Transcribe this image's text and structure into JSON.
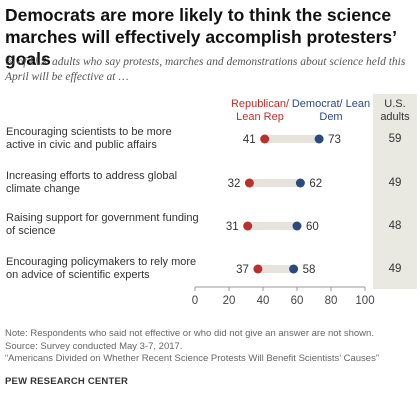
{
  "title": "Democrats are more likely to think the science marches will effectively accomplish protesters’ goals",
  "subtitle": "% of U.S. adults who say protests, marches and demonstrations about science held this April will be effective at …",
  "chart_data": {
    "type": "dot",
    "series": [
      {
        "name": "Republican/ Lean Rep",
        "color": "#b9312b",
        "values": [
          41,
          32,
          31,
          37
        ]
      },
      {
        "name": "Democrat/ Lean Dem",
        "color": "#2a4a7f",
        "values": [
          73,
          62,
          60,
          58
        ]
      }
    ],
    "categories": [
      "Encouraging scientists to be more active in civic and public affairs",
      "Increasing efforts to address global climate change",
      "Raising support for government funding of science",
      "Encouraging policymakers to rely more on advice of scientific experts"
    ],
    "us_adults_header": "U.S. adults",
    "us_adults": [
      59,
      49,
      48,
      49
    ],
    "xlim": [
      0,
      100
    ],
    "xticks": [
      0,
      20,
      40,
      60,
      80,
      100
    ],
    "bar_color": "#e6e3dc"
  },
  "notes": {
    "note": "Note: Respondents who said not effective or who did not give an answer are not shown.",
    "survey": "Source: Survey conducted May 3-7, 2017.",
    "report": "“Americans Divided on Whether Recent Science Protests Will Benefit Scientists’ Causes”"
  },
  "source_label": "PEW RESEARCH CENTER"
}
